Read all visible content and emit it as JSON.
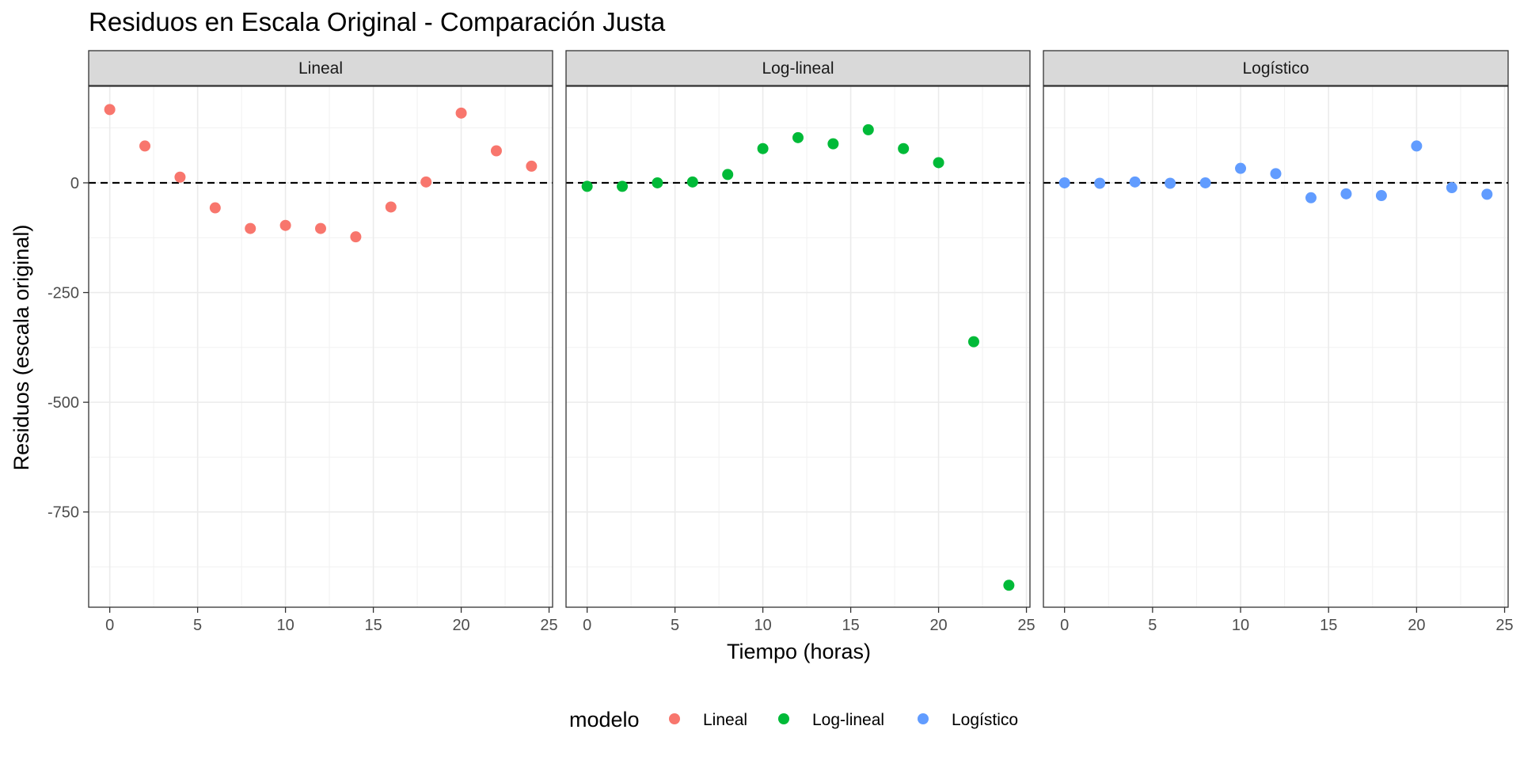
{
  "chart_data": {
    "type": "scatter",
    "title": "Residuos en Escala Original - Comparación Justa",
    "xlabel": "Tiempo (horas)",
    "ylabel": "Residuos (escala original)",
    "xlim": [
      -1.2,
      25.2
    ],
    "ylim": [
      -967,
      220
    ],
    "x_ticks": [
      0,
      5,
      10,
      15,
      20,
      25
    ],
    "y_ticks": [
      0,
      -250,
      -500,
      -750
    ],
    "y_tick_labels": [
      "0",
      "-250",
      "-500",
      "-750"
    ],
    "grid": true,
    "reference_line": {
      "y": 0,
      "style": "dashed",
      "color": "#000000"
    },
    "legend": {
      "title": "modelo",
      "position": "bottom"
    },
    "facets": [
      {
        "name": "Lineal",
        "color": "#F8766D",
        "x": [
          0,
          2,
          4,
          6,
          8,
          10,
          12,
          14,
          16,
          18,
          20,
          22,
          24
        ],
        "y": [
          167,
          84,
          13,
          -57,
          -104,
          -97,
          -104,
          -123,
          -55,
          2,
          159,
          73,
          38
        ]
      },
      {
        "name": "Log-lineal",
        "color": "#00BA38",
        "x": [
          0,
          2,
          4,
          6,
          8,
          10,
          12,
          14,
          16,
          18,
          20,
          22,
          24
        ],
        "y": [
          -8,
          -8,
          0,
          2,
          19,
          78,
          103,
          89,
          121,
          78,
          46,
          -362,
          -917
        ]
      },
      {
        "name": "Logístico",
        "color": "#619CFF",
        "x": [
          0,
          2,
          4,
          6,
          8,
          10,
          12,
          14,
          16,
          18,
          20,
          22,
          24
        ],
        "y": [
          0,
          -1,
          2,
          -1,
          0,
          33,
          21,
          -34,
          -25,
          -29,
          84,
          -11,
          -26
        ]
      }
    ]
  }
}
